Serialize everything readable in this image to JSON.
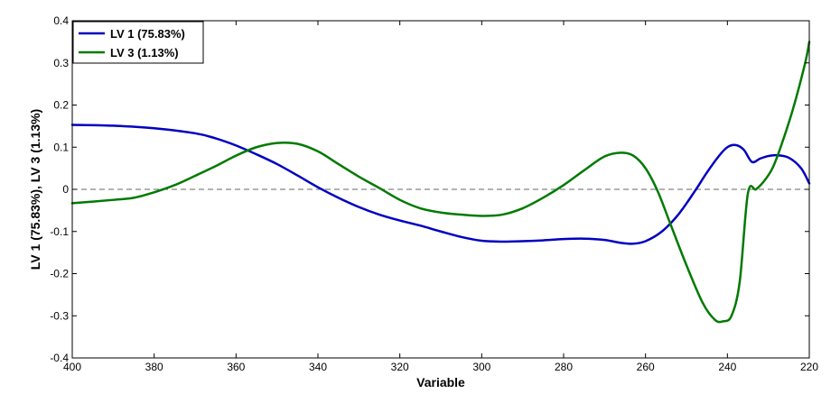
{
  "chart_data": {
    "type": "line",
    "title": "",
    "xlabel": "Variable",
    "ylabel": "LV 1 (75.83%), LV 3 (1.13%)",
    "xlim": [
      400,
      220
    ],
    "x_reversed": true,
    "ylim": [
      -0.4,
      0.4
    ],
    "x_ticks": [
      400,
      380,
      360,
      340,
      320,
      300,
      280,
      260,
      240,
      220
    ],
    "y_ticks": [
      -0.4,
      -0.3,
      -0.2,
      -0.1,
      0,
      0.1,
      0.2,
      0.3,
      0.4
    ],
    "x_tick_labels": [
      "400",
      "380",
      "360",
      "340",
      "320",
      "300",
      "280",
      "260",
      "240",
      "220"
    ],
    "y_tick_labels": [
      "-0.4",
      "-0.3",
      "-0.2",
      "-0.1",
      "0",
      "0.1",
      "0.2",
      "0.3",
      "0.4"
    ],
    "grid": false,
    "zero_line": {
      "y": 0,
      "style": "dashed",
      "color": "#666666"
    },
    "legend_position": "top-left",
    "series": [
      {
        "name": "LV 1 (75.83%)",
        "color": "#0000c0",
        "x": [
          400,
          390,
          380,
          370,
          365,
          360,
          355,
          350,
          345,
          340,
          335,
          330,
          325,
          320,
          315,
          310,
          305,
          300,
          295,
          290,
          285,
          280,
          275,
          270,
          266,
          263,
          260,
          256,
          252,
          248,
          245,
          242,
          240,
          238,
          236,
          234,
          232,
          230,
          228,
          225,
          222,
          220
        ],
        "y": [
          0.153,
          0.151,
          0.145,
          0.133,
          0.121,
          0.104,
          0.083,
          0.06,
          0.033,
          0.005,
          -0.02,
          -0.042,
          -0.06,
          -0.074,
          -0.086,
          -0.1,
          -0.113,
          -0.122,
          -0.124,
          -0.123,
          -0.121,
          -0.118,
          -0.117,
          -0.12,
          -0.127,
          -0.129,
          -0.123,
          -0.1,
          -0.06,
          -0.005,
          0.04,
          0.08,
          0.1,
          0.105,
          0.094,
          0.065,
          0.073,
          0.079,
          0.081,
          0.075,
          0.05,
          0.014
        ]
      },
      {
        "name": "LV 3 (1.13%)",
        "color": "#007a00",
        "x": [
          400,
          390,
          385,
          380,
          375,
          370,
          365,
          360,
          355,
          350,
          345,
          340,
          335,
          330,
          325,
          320,
          315,
          310,
          305,
          300,
          295,
          290,
          285,
          280,
          275,
          270,
          266,
          263,
          260,
          257,
          254,
          250,
          246,
          243,
          241,
          239,
          237,
          235,
          233,
          231,
          229,
          227,
          224,
          221,
          220
        ],
        "y": [
          -0.033,
          -0.025,
          -0.02,
          -0.007,
          0.01,
          0.032,
          0.055,
          0.08,
          0.1,
          0.11,
          0.108,
          0.09,
          0.06,
          0.03,
          0.003,
          -0.025,
          -0.045,
          -0.055,
          -0.06,
          -0.063,
          -0.06,
          -0.045,
          -0.02,
          0.01,
          0.045,
          0.078,
          0.087,
          0.08,
          0.05,
          -0.005,
          -0.08,
          -0.18,
          -0.27,
          -0.31,
          -0.313,
          -0.3,
          -0.22,
          -0.01,
          0.0,
          0.02,
          0.05,
          0.1,
          0.19,
          0.3,
          0.35
        ]
      }
    ]
  }
}
